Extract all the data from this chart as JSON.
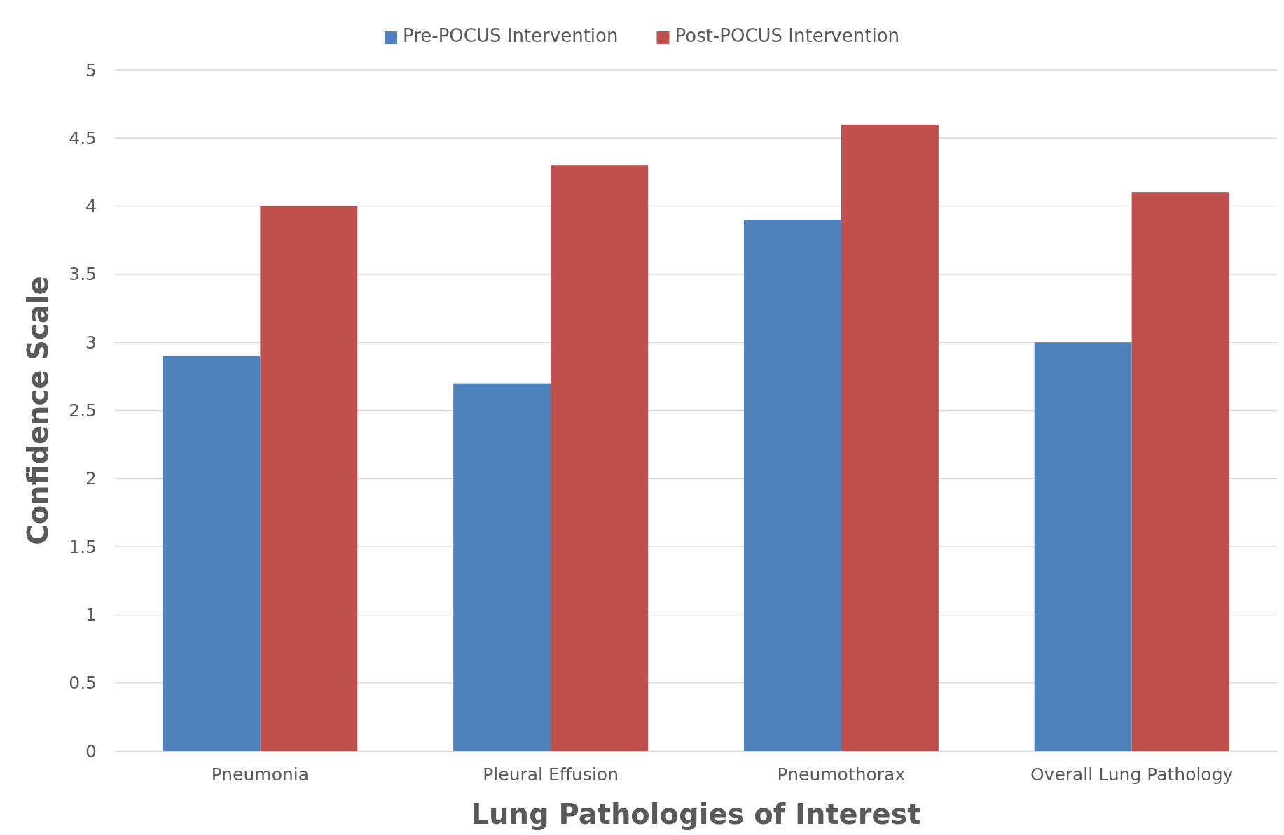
{
  "chart_data": {
    "type": "bar",
    "xlabel": "Lung Pathologies of Interest",
    "ylabel": "Confidence Scale",
    "categories": [
      "Pneumonia",
      "Pleural Effusion",
      "Pneumothorax",
      "Overall Lung Pathology"
    ],
    "series": [
      {
        "name": "Pre-POCUS Intervention",
        "color": "#4f81bd",
        "values": [
          2.9,
          2.7,
          3.9,
          3.0
        ]
      },
      {
        "name": "Post-POCUS Intervention",
        "color": "#c0504d",
        "values": [
          4.0,
          4.3,
          4.6,
          4.1
        ]
      }
    ],
    "ylim": [
      0,
      5
    ],
    "yticks": [
      0,
      0.5,
      1,
      1.5,
      2,
      2.5,
      3,
      3.5,
      4,
      4.5,
      5
    ],
    "grid": "y",
    "legend": "top"
  }
}
